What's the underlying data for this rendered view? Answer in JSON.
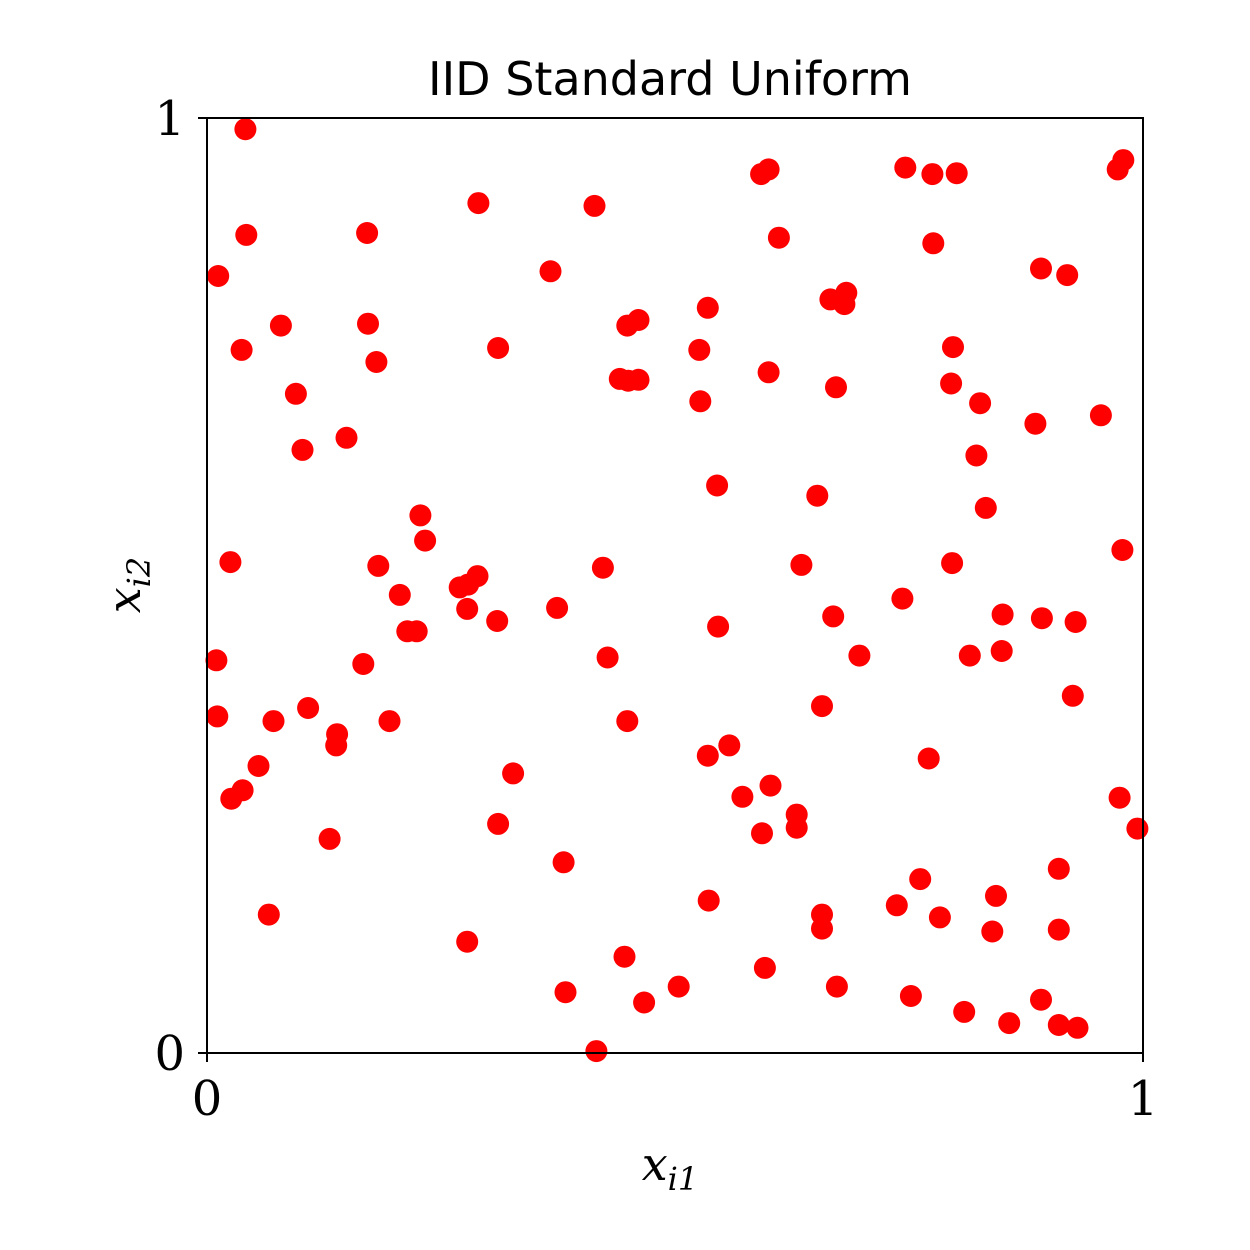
{
  "chart_data": {
    "type": "scatter",
    "title": "IID Standard Uniform",
    "xlabel": "x",
    "xlabel_sub": "i1",
    "ylabel": "x",
    "ylabel_sub": "i2",
    "xlim": [
      0,
      1
    ],
    "ylim": [
      0,
      1
    ],
    "xticks": [
      "0",
      "1"
    ],
    "yticks": [
      "0",
      "1"
    ],
    "grid": false,
    "point_color": "#ff0000",
    "points": [
      [
        0.041,
        0.988
      ],
      [
        0.042,
        0.875
      ],
      [
        0.012,
        0.831
      ],
      [
        0.037,
        0.752
      ],
      [
        0.079,
        0.778
      ],
      [
        0.095,
        0.705
      ],
      [
        0.102,
        0.645
      ],
      [
        0.171,
        0.877
      ],
      [
        0.172,
        0.78
      ],
      [
        0.181,
        0.739
      ],
      [
        0.149,
        0.658
      ],
      [
        0.29,
        0.909
      ],
      [
        0.311,
        0.754
      ],
      [
        0.367,
        0.836
      ],
      [
        0.414,
        0.906
      ],
      [
        0.423,
        0.519
      ],
      [
        0.025,
        0.525
      ],
      [
        0.183,
        0.521
      ],
      [
        0.228,
        0.575
      ],
      [
        0.233,
        0.548
      ],
      [
        0.206,
        0.49
      ],
      [
        0.214,
        0.451
      ],
      [
        0.224,
        0.451
      ],
      [
        0.27,
        0.498
      ],
      [
        0.279,
        0.501
      ],
      [
        0.289,
        0.51
      ],
      [
        0.278,
        0.475
      ],
      [
        0.31,
        0.462
      ],
      [
        0.374,
        0.476
      ],
      [
        0.01,
        0.42
      ],
      [
        0.167,
        0.416
      ],
      [
        0.449,
        0.355
      ],
      [
        0.011,
        0.36
      ],
      [
        0.071,
        0.355
      ],
      [
        0.108,
        0.369
      ],
      [
        0.139,
        0.341
      ],
      [
        0.138,
        0.329
      ],
      [
        0.195,
        0.355
      ],
      [
        0.055,
        0.307
      ],
      [
        0.038,
        0.281
      ],
      [
        0.026,
        0.272
      ],
      [
        0.327,
        0.299
      ],
      [
        0.311,
        0.245
      ],
      [
        0.131,
        0.229
      ],
      [
        0.066,
        0.148
      ],
      [
        0.381,
        0.204
      ],
      [
        0.278,
        0.119
      ],
      [
        0.383,
        0.065
      ],
      [
        0.416,
        0.002
      ],
      [
        0.446,
        0.103
      ],
      [
        0.467,
        0.054
      ],
      [
        0.504,
        0.071
      ],
      [
        0.536,
        0.163
      ],
      [
        0.449,
        0.778
      ],
      [
        0.461,
        0.784
      ],
      [
        0.441,
        0.721
      ],
      [
        0.45,
        0.719
      ],
      [
        0.461,
        0.72
      ],
      [
        0.526,
        0.752
      ],
      [
        0.535,
        0.797
      ],
      [
        0.527,
        0.697
      ],
      [
        0.545,
        0.607
      ],
      [
        0.546,
        0.456
      ],
      [
        0.428,
        0.423
      ],
      [
        0.535,
        0.318
      ],
      [
        0.558,
        0.329
      ],
      [
        0.572,
        0.274
      ],
      [
        0.602,
        0.286
      ],
      [
        0.593,
        0.235
      ],
      [
        0.63,
        0.255
      ],
      [
        0.63,
        0.241
      ],
      [
        0.596,
        0.091
      ],
      [
        0.657,
        0.148
      ],
      [
        0.657,
        0.133
      ],
      [
        0.673,
        0.071
      ],
      [
        0.592,
        0.94
      ],
      [
        0.6,
        0.945
      ],
      [
        0.611,
        0.872
      ],
      [
        0.6,
        0.728
      ],
      [
        0.666,
        0.806
      ],
      [
        0.683,
        0.813
      ],
      [
        0.681,
        0.801
      ],
      [
        0.672,
        0.712
      ],
      [
        0.652,
        0.596
      ],
      [
        0.635,
        0.522
      ],
      [
        0.669,
        0.467
      ],
      [
        0.697,
        0.425
      ],
      [
        0.657,
        0.371
      ],
      [
        0.746,
        0.947
      ],
      [
        0.775,
        0.94
      ],
      [
        0.776,
        0.866
      ],
      [
        0.801,
        0.941
      ],
      [
        0.797,
        0.755
      ],
      [
        0.795,
        0.716
      ],
      [
        0.822,
        0.639
      ],
      [
        0.826,
        0.695
      ],
      [
        0.832,
        0.583
      ],
      [
        0.796,
        0.524
      ],
      [
        0.743,
        0.486
      ],
      [
        0.815,
        0.425
      ],
      [
        0.849,
        0.43
      ],
      [
        0.85,
        0.469
      ],
      [
        0.771,
        0.315
      ],
      [
        0.762,
        0.186
      ],
      [
        0.737,
        0.158
      ],
      [
        0.752,
        0.061
      ],
      [
        0.783,
        0.145
      ],
      [
        0.809,
        0.044
      ],
      [
        0.843,
        0.168
      ],
      [
        0.839,
        0.13
      ],
      [
        0.857,
        0.032
      ],
      [
        0.891,
        0.839
      ],
      [
        0.919,
        0.832
      ],
      [
        0.885,
        0.673
      ],
      [
        0.892,
        0.465
      ],
      [
        0.928,
        0.461
      ],
      [
        0.925,
        0.382
      ],
      [
        0.955,
        0.682
      ],
      [
        0.973,
        0.945
      ],
      [
        0.979,
        0.955
      ],
      [
        0.978,
        0.538
      ],
      [
        0.975,
        0.273
      ],
      [
        0.994,
        0.24
      ],
      [
        0.91,
        0.197
      ],
      [
        0.91,
        0.132
      ],
      [
        0.891,
        0.057
      ],
      [
        0.91,
        0.03
      ],
      [
        0.93,
        0.027
      ]
    ]
  }
}
